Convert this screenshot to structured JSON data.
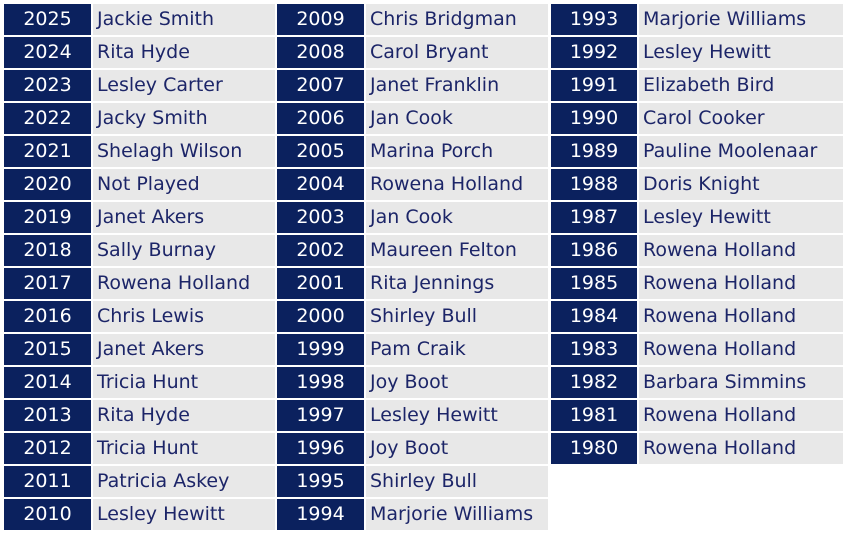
{
  "colors": {
    "year_bg": "#0b215e",
    "name_bg": "#e8e8e8",
    "name_text": "#1c2568"
  },
  "columns": [
    [
      [
        "2025",
        "Jackie Smith"
      ],
      [
        "2024",
        "Rita Hyde"
      ],
      [
        "2023",
        "Lesley Carter"
      ],
      [
        "2022",
        "Jacky Smith"
      ],
      [
        "2021",
        "Shelagh Wilson"
      ],
      [
        "2020",
        "Not Played"
      ],
      [
        "2019",
        "Janet Akers"
      ],
      [
        "2018",
        "Sally Burnay"
      ],
      [
        "2017",
        "Rowena Holland"
      ],
      [
        "2016",
        "Chris Lewis"
      ],
      [
        "2015",
        "Janet Akers"
      ],
      [
        "2014",
        "Tricia Hunt"
      ],
      [
        "2013",
        "Rita Hyde"
      ],
      [
        "2012",
        "Tricia Hunt"
      ],
      [
        "2011",
        "Patricia Askey"
      ],
      [
        "2010",
        "Lesley Hewitt"
      ]
    ],
    [
      [
        "2009",
        "Chris Bridgman"
      ],
      [
        "2008",
        "Carol Bryant"
      ],
      [
        "2007",
        "Janet Franklin"
      ],
      [
        "2006",
        "Jan Cook"
      ],
      [
        "2005",
        "Marina Porch"
      ],
      [
        "2004",
        "Rowena Holland"
      ],
      [
        "2003",
        "Jan Cook"
      ],
      [
        "2002",
        "Maureen Felton"
      ],
      [
        "2001",
        "Rita Jennings"
      ],
      [
        "2000",
        "Shirley Bull"
      ],
      [
        "1999",
        "Pam Craik"
      ],
      [
        "1998",
        "Joy Boot"
      ],
      [
        "1997",
        "Lesley Hewitt"
      ],
      [
        "1996",
        "Joy Boot"
      ],
      [
        "1995",
        "Shirley Bull"
      ],
      [
        "1994",
        "Marjorie Williams"
      ]
    ],
    [
      [
        "1993",
        "Marjorie Williams"
      ],
      [
        "1992",
        "Lesley Hewitt"
      ],
      [
        "1991",
        "Elizabeth Bird"
      ],
      [
        "1990",
        "Carol Cooker"
      ],
      [
        "1989",
        "Pauline Moolenaar"
      ],
      [
        "1988",
        "Doris Knight"
      ],
      [
        "1987",
        "Lesley Hewitt"
      ],
      [
        "1986",
        "Rowena Holland"
      ],
      [
        "1985",
        "Rowena Holland"
      ],
      [
        "1984",
        "Rowena Holland"
      ],
      [
        "1983",
        "Rowena Holland"
      ],
      [
        "1982",
        "Barbara Simmins"
      ],
      [
        "1981",
        "Rowena Holland"
      ],
      [
        "1980",
        "Rowena Holland"
      ]
    ]
  ]
}
